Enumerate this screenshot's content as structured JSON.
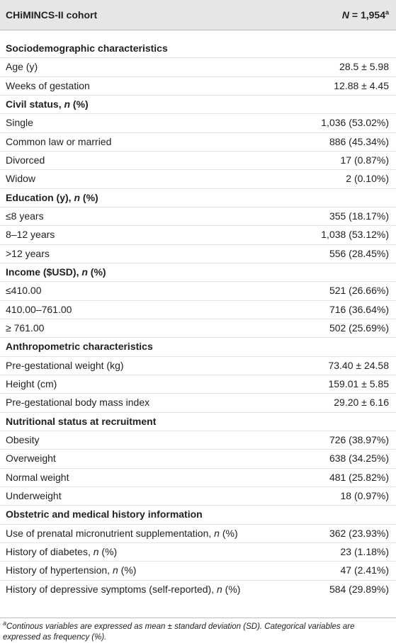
{
  "table": {
    "header": [
      [
        {
          "text": "CHiMINCS-II cohort"
        }
      ],
      [
        {
          "text": "N",
          "italic": true
        },
        {
          "text": " = 1,954"
        },
        {
          "text": "a",
          "sup": true
        }
      ]
    ],
    "rows": [
      {
        "label": "Sociodemographic characteristics",
        "section": true
      },
      {
        "label": "Age (y)",
        "value": "28.5 ± 5.98"
      },
      {
        "label": "Weeks of gestation",
        "value": "12.88 ± 4.45"
      },
      {
        "label": [
          {
            "text": "Civil status, "
          },
          {
            "text": "n",
            "italic": true
          },
          {
            "text": " (%)"
          }
        ],
        "section": true
      },
      {
        "label": "Single",
        "value": "1,036 (53.02%)"
      },
      {
        "label": "Common law or married",
        "value": "886 (45.34%)"
      },
      {
        "label": "Divorced",
        "value": "17 (0.87%)"
      },
      {
        "label": "Widow",
        "value": "2 (0.10%)"
      },
      {
        "label": [
          {
            "text": "Education (y), "
          },
          {
            "text": "n",
            "italic": true
          },
          {
            "text": " (%)"
          }
        ],
        "section": true
      },
      {
        "label": "≤8 years",
        "value": "355 (18.17%)"
      },
      {
        "label": "8–12 years",
        "value": "1,038 (53.12%)"
      },
      {
        "label": ">12 years",
        "value": "556 (28.45%)"
      },
      {
        "label": [
          {
            "text": "Income ($USD), "
          },
          {
            "text": "n",
            "italic": true
          },
          {
            "text": " (%)"
          }
        ],
        "section": true
      },
      {
        "label": "≤410.00",
        "value": "521 (26.66%)"
      },
      {
        "label": "410.00–761.00",
        "value": "716 (36.64%)"
      },
      {
        "label": "≥ 761.00",
        "value": "502 (25.69%)"
      },
      {
        "label": "Anthropometric characteristics",
        "section": true
      },
      {
        "label": "Pre-gestational weight (kg)",
        "value": "73.40 ± 24.58"
      },
      {
        "label": "Height (cm)",
        "value": "159.01 ± 5.85"
      },
      {
        "label": "Pre-gestational body mass index",
        "value": "29.20 ± 6.16"
      },
      {
        "label": "Nutritional status at recruitment",
        "section": true
      },
      {
        "label": "Obesity",
        "value": "726 (38.97%)"
      },
      {
        "label": "Overweight",
        "value": "638 (34.25%)"
      },
      {
        "label": "Normal weight",
        "value": "481 (25.82%)"
      },
      {
        "label": "Underweight",
        "value": "18 (0.97%)"
      },
      {
        "label": "Obstetric and medical history information",
        "section": true
      },
      {
        "label": [
          {
            "text": "Use of prenatal micronutrient supplementation, "
          },
          {
            "text": "n",
            "italic": true
          },
          {
            "text": " (%)"
          }
        ],
        "value": "362 (23.93%)"
      },
      {
        "label": [
          {
            "text": "History of diabetes, "
          },
          {
            "text": "n",
            "italic": true
          },
          {
            "text": " (%)"
          }
        ],
        "value": "23 (1.18%)"
      },
      {
        "label": [
          {
            "text": "History of hypertension, "
          },
          {
            "text": "n",
            "italic": true
          },
          {
            "text": " (%)"
          }
        ],
        "value": "47 (2.41%)"
      },
      {
        "label": [
          {
            "text": "History of depressive symptoms (self-reported), "
          },
          {
            "text": "n",
            "italic": true
          },
          {
            "text": " (%)"
          }
        ],
        "value": "584 (29.89%)"
      }
    ],
    "footnote": [
      {
        "text": "a",
        "sup": true
      },
      {
        "text": "Continous variables are expressed as mean ± standard deviation (SD). Categorical variables are expressed as frequency (%)."
      }
    ]
  }
}
